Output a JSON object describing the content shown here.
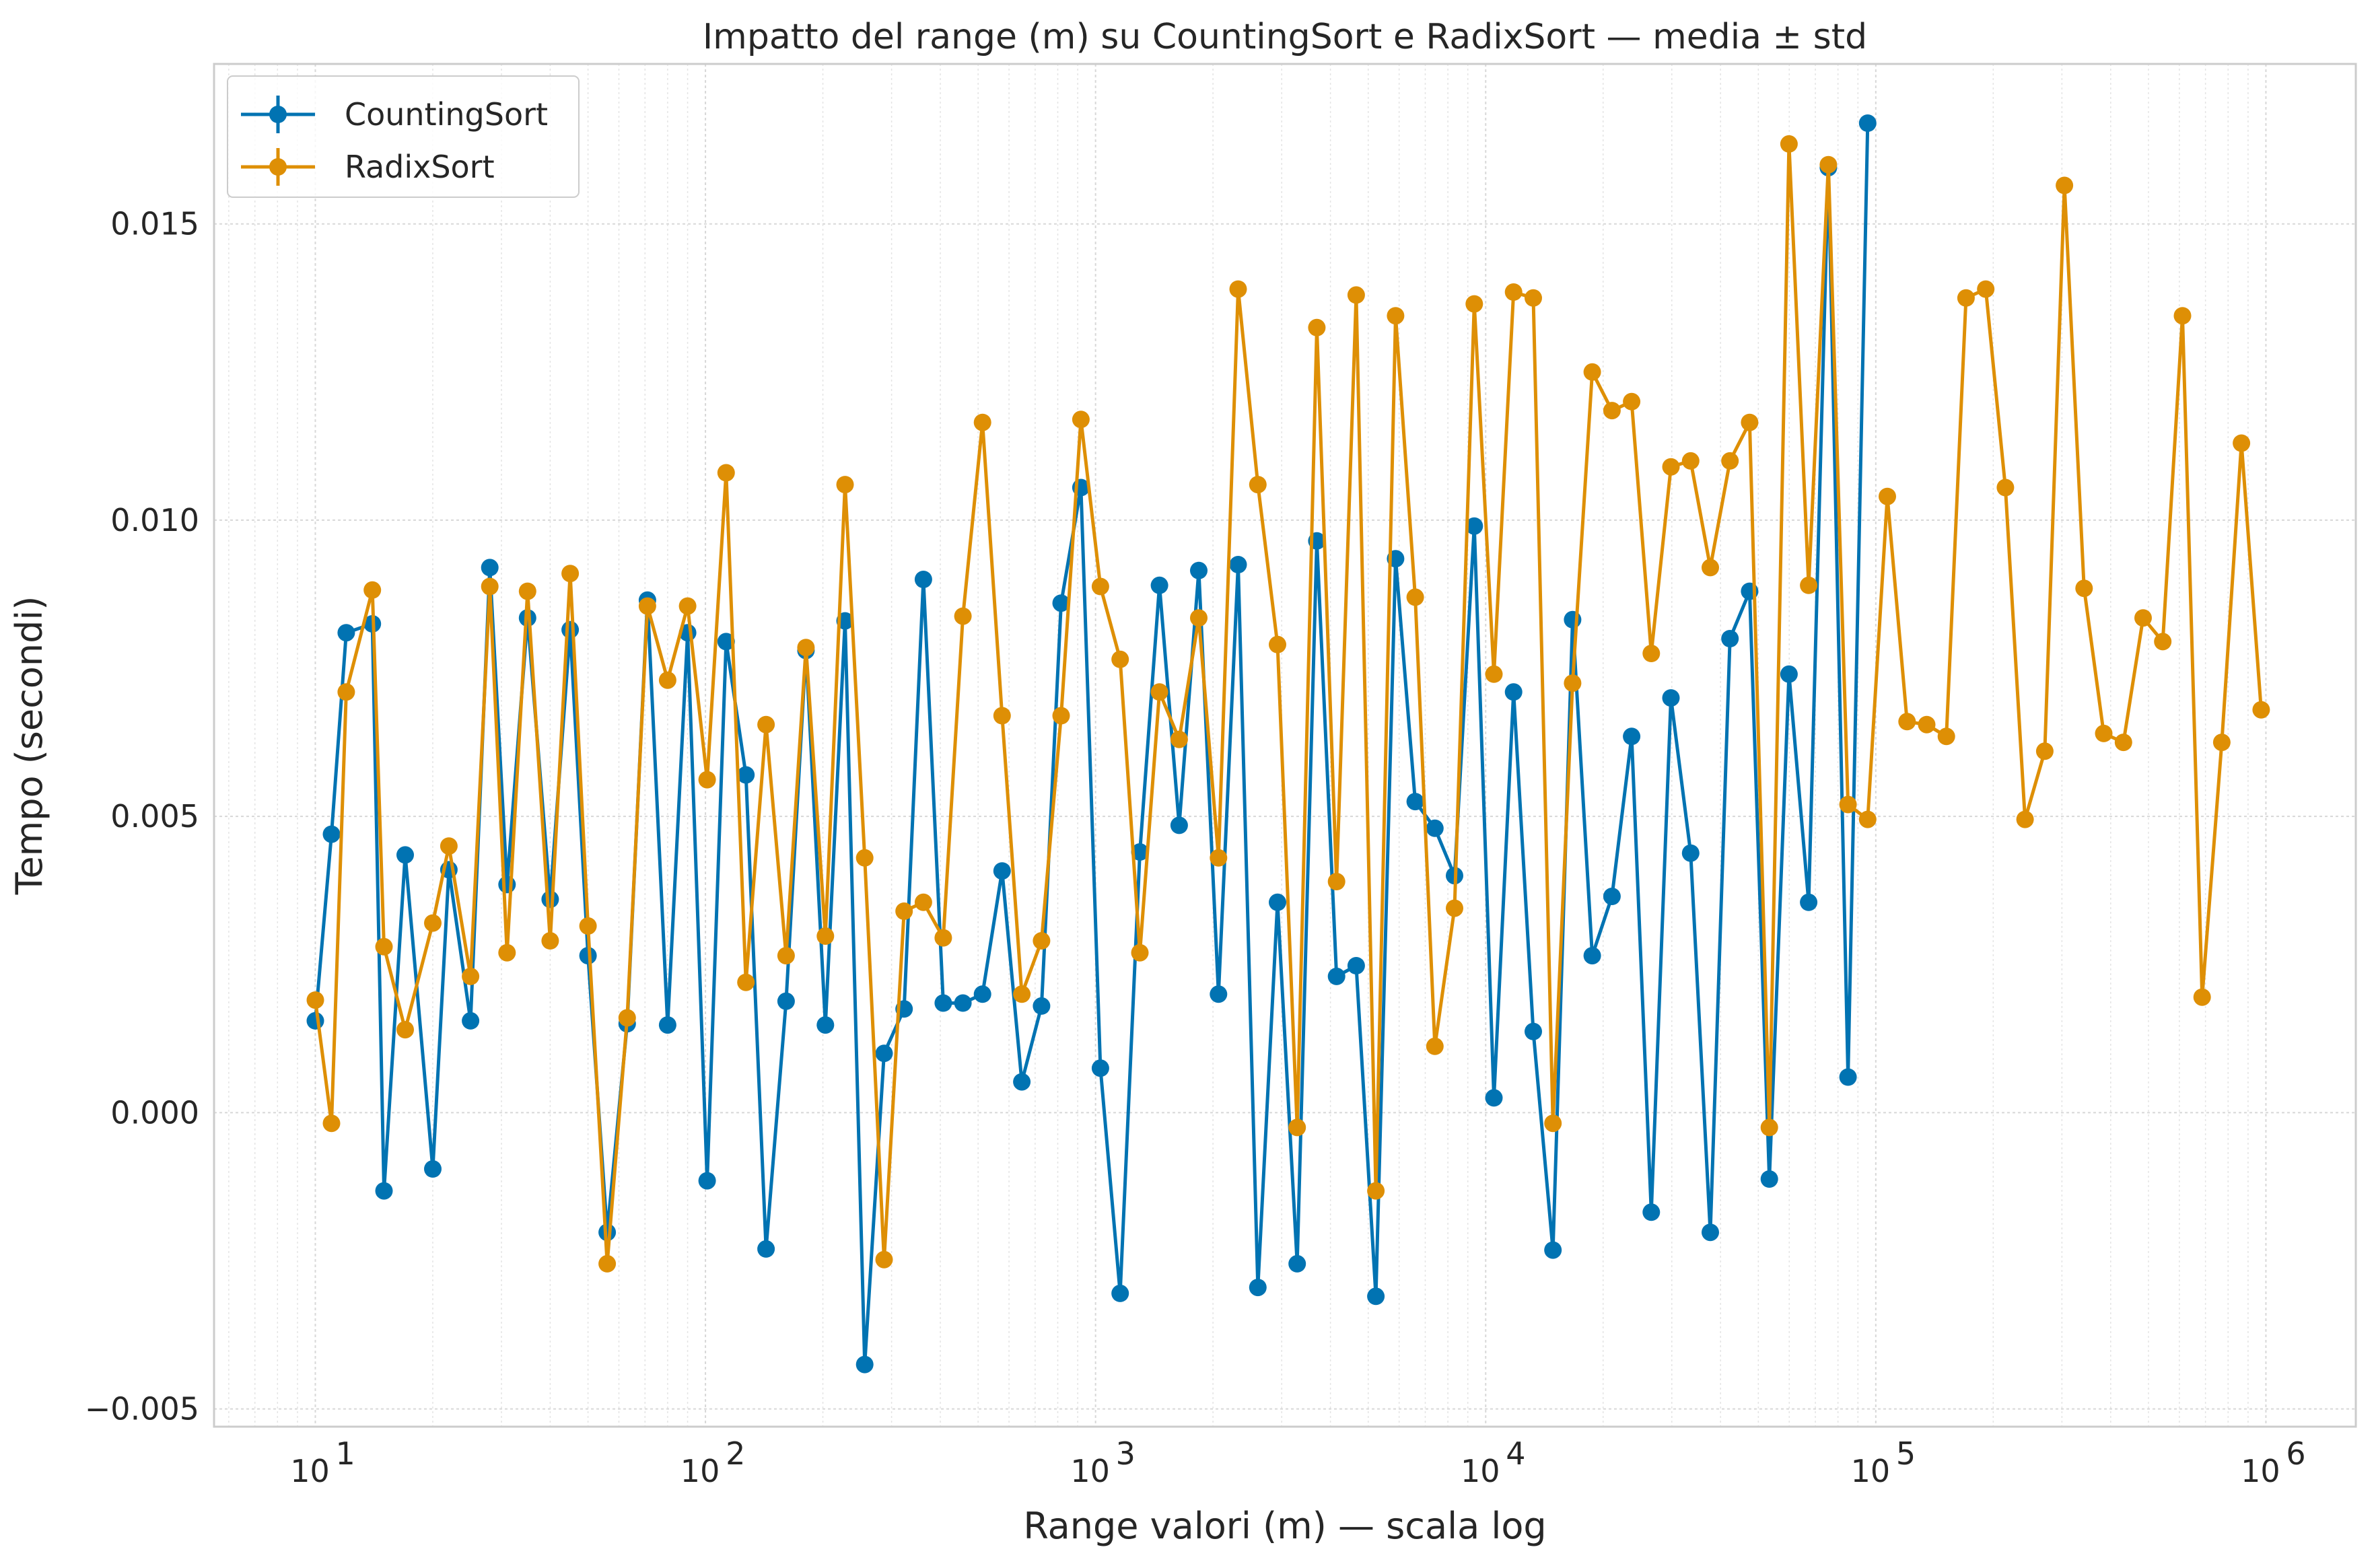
{
  "chart_data": {
    "type": "line",
    "title": "Impatto del range (m) su CountingSort e RadixSort — media ± std",
    "xlabel": "Range valori (m) — scala log",
    "ylabel": "Tempo (secondi)",
    "xscale": "log",
    "xlim": [
      5.5,
      1700000
    ],
    "ylim": [
      -0.0053,
      0.0177
    ],
    "grid": true,
    "legend_position": "top-left",
    "y_ticks": [
      "−0.005",
      "0.000",
      "0.005",
      "0.010",
      "0.015"
    ],
    "y_tick_values": [
      -0.005,
      0,
      0.005,
      0.01,
      0.015
    ],
    "x_ticks": [
      "10",
      "10",
      "10",
      "10",
      "10",
      "10"
    ],
    "x_tick_exponents": [
      "1",
      "2",
      "3",
      "4",
      "5",
      "6"
    ],
    "x_tick_values": [
      10,
      100,
      1000,
      10000,
      100000,
      1000000
    ],
    "series": [
      {
        "name": "CountingSort",
        "color": "#0173b2",
        "x": [
          10,
          11,
          12,
          14,
          15,
          17,
          20,
          22,
          25,
          28,
          31,
          35,
          40,
          45,
          50,
          56,
          63,
          71,
          80,
          90,
          101,
          113,
          127,
          143,
          161,
          181,
          203,
          228,
          256,
          287,
          323,
          362,
          407,
          457,
          513,
          576,
          647,
          727,
          816,
          917,
          1029,
          1156,
          1299,
          1458,
          1638,
          1839,
          2066,
          2320,
          2606,
          2927,
          3287,
          3692,
          4147,
          4657,
          5231,
          5875,
          6598,
          7410,
          8323,
          9347,
          10498,
          11791,
          13243,
          14873,
          16704,
          18761,
          21071,
          23665,
          26579,
          29851,
          33527,
          37655,
          42291,
          47498,
          53346,
          59914,
          67291,
          75576,
          84881,
          95331
        ],
        "y": [
          0.00155,
          0.0047,
          0.0081,
          0.00825,
          -0.00132,
          0.00435,
          -0.00095,
          0.0041,
          0.00155,
          0.0092,
          0.00385,
          0.00835,
          0.0036,
          0.00815,
          0.00265,
          -0.00202,
          0.0015,
          0.00865,
          0.00148,
          0.0081,
          -0.00115,
          0.00795,
          0.0057,
          -0.0023,
          0.00188,
          0.0078,
          0.00148,
          0.0083,
          -0.00425,
          0.001,
          0.00175,
          0.009,
          0.00185,
          0.00185,
          0.002,
          0.00408,
          0.00052,
          0.0018,
          0.0086,
          0.01055,
          0.00075,
          -0.00305,
          0.0044,
          0.0089,
          0.00485,
          0.00915,
          0.002,
          0.00925,
          -0.00295,
          0.00355,
          -0.00255,
          0.00965,
          0.0023,
          0.00248,
          -0.0031,
          0.00935,
          0.00525,
          0.0048,
          0.004,
          0.0099,
          0.00025,
          0.0071,
          0.00137,
          -0.00232,
          0.00832,
          0.00265,
          0.00365,
          0.00635,
          -0.00168,
          0.007,
          0.00438,
          -0.00202,
          0.008,
          0.0088,
          -0.00112,
          0.0074,
          0.00355,
          0.01595,
          0.0006,
          0.0167
        ]
      },
      {
        "name": "RadixSort",
        "color": "#de8f05",
        "x": [
          10,
          11,
          12,
          14,
          15,
          17,
          20,
          22,
          25,
          28,
          31,
          35,
          40,
          45,
          50,
          56,
          63,
          71,
          80,
          90,
          101,
          113,
          127,
          143,
          161,
          181,
          203,
          228,
          256,
          287,
          323,
          362,
          407,
          457,
          513,
          576,
          647,
          727,
          816,
          917,
          1029,
          1156,
          1299,
          1458,
          1638,
          1839,
          2066,
          2320,
          2606,
          2927,
          3287,
          3692,
          4147,
          4657,
          5231,
          5875,
          6598,
          7410,
          8323,
          9347,
          10498,
          11791,
          13243,
          14873,
          16704,
          18761,
          21071,
          23665,
          26579,
          29851,
          33527,
          37655,
          42291,
          47498,
          53346,
          59914,
          67291,
          75576,
          84881,
          95331,
          107070,
          120253,
          135059,
          151688,
          170364,
          191340,
          214899,
          241359,
          271077,
          304454,
          341941,
          384044,
          431330,
          484438,
          544085,
          611077,
          686318,
          770822,
          865728,
          972318
        ],
        "y": [
          0.0019,
          -0.00018,
          0.0071,
          0.00882,
          0.0028,
          0.0014,
          0.0032,
          0.0045,
          0.0023,
          0.00888,
          0.0027,
          0.0088,
          0.0029,
          0.0091,
          0.00315,
          -0.00255,
          0.0016,
          0.00855,
          0.0073,
          0.00855,
          0.00562,
          0.0108,
          0.0022,
          0.00655,
          0.00265,
          0.00785,
          0.00298,
          0.0106,
          0.0043,
          -0.00248,
          0.0034,
          0.00355,
          0.00295,
          0.00838,
          0.01165,
          0.0067,
          0.002,
          0.0029,
          0.0067,
          0.0117,
          0.00888,
          0.00765,
          0.0027,
          0.0071,
          0.0063,
          0.00835,
          0.0043,
          0.0139,
          0.0106,
          0.0079,
          -0.00025,
          0.01325,
          0.0039,
          0.0138,
          -0.00132,
          0.01345,
          0.0087,
          0.00112,
          0.00345,
          0.01365,
          0.0074,
          0.01385,
          0.01375,
          -0.00018,
          0.00725,
          0.0125,
          0.01185,
          0.012,
          0.00775,
          0.0109,
          0.011,
          0.0092,
          0.011,
          0.01165,
          -0.00025,
          0.01635,
          0.0089,
          0.016,
          0.0052,
          0.00495,
          0.0104,
          0.0066,
          0.00655,
          0.00635,
          0.01375,
          0.0139,
          0.01055,
          0.00495,
          0.0061,
          0.01565,
          0.00885,
          0.0064,
          0.00625,
          0.00835,
          0.00795,
          0.01345,
          0.00195,
          0.00625,
          0.0113,
          0.0068
        ]
      }
    ]
  }
}
